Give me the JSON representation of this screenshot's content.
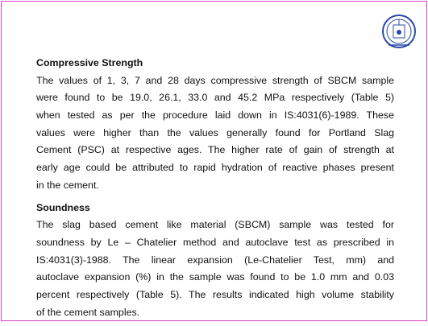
{
  "sections": [
    {
      "heading": "Compressive Strength",
      "lines": [
        "The values of 1, 3, 7 and 28 days compressive strength of SBCM  sample",
        "were found to be 19.0, 26.1, 33.0 and 45.2 MPa respectively (Table 5)",
        "when tested as per the procedure laid down in IS:4031(6)-1989. These",
        "values were higher than the values generally found for Portland Slag",
        "Cement (PSC) at respective ages. The higher rate of gain of strength at",
        "early age could be attributed to rapid hydration of reactive phases present",
        "in the cement."
      ]
    },
    {
      "heading": "Soundness",
      "lines": [
        "The slag based cement like material (SBCM) sample was tested for",
        "soundness by Le – Chatelier method and autoclave test as prescribed in",
        "IS:4031(3)-1988. The linear expansion (Le-Chatelier Test, mm) and",
        "autoclave expansion (%) in the sample was found to be 1.0 mm and 0.03",
        "percent respectively (Table 5). The results indicated high volume stability",
        "of the cement samples."
      ]
    }
  ]
}
